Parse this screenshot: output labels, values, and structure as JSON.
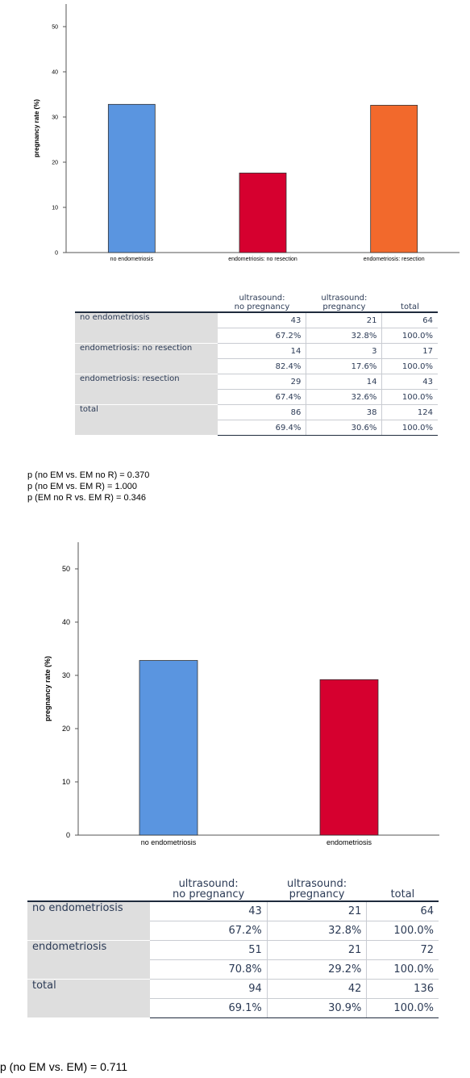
{
  "chart_data": [
    {
      "type": "bar",
      "categories": [
        "no endometriosis",
        "endometriosis: no resection",
        "endometriosis: resection"
      ],
      "values": [
        32.8,
        17.6,
        32.6
      ],
      "colors": [
        "#5a95e0",
        "#d6002f",
        "#f2692c"
      ],
      "ylabel": "pregnancy rate (%)",
      "yticks": [
        0,
        10,
        20,
        30,
        40,
        50
      ],
      "ylim": [
        0,
        55
      ],
      "grid": false
    },
    {
      "type": "bar",
      "categories": [
        "no endometriosis",
        "endometriosis"
      ],
      "values": [
        32.8,
        29.2
      ],
      "colors": [
        "#5a95e0",
        "#d6002f"
      ],
      "ylabel": "pregnancy rate (%)",
      "yticks": [
        0,
        10,
        20,
        30,
        40,
        50
      ],
      "ylim": [
        0,
        55
      ],
      "grid": false
    }
  ],
  "table1": {
    "headers": [
      "ultrasound:\nno pregnancy",
      "ultrasound:\npregnancy",
      "total"
    ],
    "rows": [
      {
        "label": "no endometriosis",
        "counts": [
          "43",
          "21",
          "64"
        ],
        "pcts": [
          "67.2%",
          "32.8%",
          "100.0%"
        ]
      },
      {
        "label": "endometriosis: no resection",
        "counts": [
          "14",
          "3",
          "17"
        ],
        "pcts": [
          "82.4%",
          "17.6%",
          "100.0%"
        ]
      },
      {
        "label": "endometriosis: resection",
        "counts": [
          "29",
          "14",
          "43"
        ],
        "pcts": [
          "67.4%",
          "32.6%",
          "100.0%"
        ]
      },
      {
        "label": "total",
        "counts": [
          "86",
          "38",
          "124"
        ],
        "pcts": [
          "69.4%",
          "30.6%",
          "100.0%"
        ]
      }
    ]
  },
  "pvalues1": [
    "p (no EM vs. EM no R) = 0.370",
    "p (no EM vs. EM R) = 1.000",
    "p (EM no R vs. EM R) = 0.346"
  ],
  "table2": {
    "headers": [
      "ultrasound:\nno pregnancy",
      "ultrasound:\npregnancy",
      "total"
    ],
    "rows": [
      {
        "label": "no endometriosis",
        "counts": [
          "43",
          "21",
          "64"
        ],
        "pcts": [
          "67.2%",
          "32.8%",
          "100.0%"
        ]
      },
      {
        "label": "endometriosis",
        "counts": [
          "51",
          "21",
          "72"
        ],
        "pcts": [
          "70.8%",
          "29.2%",
          "100.0%"
        ]
      },
      {
        "label": "total",
        "counts": [
          "94",
          "42",
          "136"
        ],
        "pcts": [
          "69.1%",
          "30.9%",
          "100.0%"
        ]
      }
    ]
  },
  "pvalues2": [
    "p (no EM vs. EM) = 0.711"
  ]
}
